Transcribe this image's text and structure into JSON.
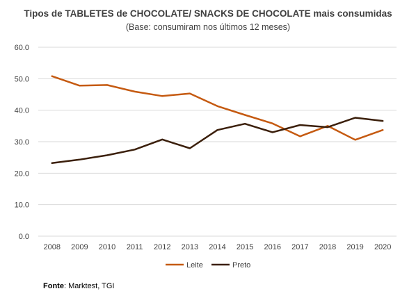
{
  "title": "Tipos de TABLETES de CHOCOLATE/ SNACKS DE CHOCOLATE mais consumidas",
  "subtitle": "(Base: consumiram nos últimos 12 meses)",
  "source_label": "Fonte",
  "source_text": ": Marktest, TGI",
  "chart_data": {
    "type": "line",
    "title": "Tipos de TABLETES de CHOCOLATE/ SNACKS DE CHOCOLATE mais consumidas",
    "subtitle": "(Base: consumiram nos últimos 12 meses)",
    "xlabel": "",
    "ylabel": "",
    "categories": [
      "2008",
      "2009",
      "2010",
      "2011",
      "2012",
      "2013",
      "2014",
      "2015",
      "2016",
      "2017",
      "2018",
      "2019",
      "2020"
    ],
    "ylim": [
      0,
      60
    ],
    "yticks": [
      "0.0",
      "10.0",
      "20.0",
      "30.0",
      "40.0",
      "50.0",
      "60.0"
    ],
    "grid": true,
    "legend_position": "bottom",
    "series": [
      {
        "name": "Leite",
        "color": "#c55a11",
        "values": [
          50.8,
          47.8,
          48.0,
          45.9,
          44.5,
          45.3,
          41.3,
          38.5,
          35.8,
          31.7,
          35.0,
          30.6,
          33.7
        ]
      },
      {
        "name": "Preto",
        "color": "#3b1f0b",
        "values": [
          23.2,
          24.3,
          25.7,
          27.5,
          30.7,
          27.9,
          33.7,
          35.7,
          33.0,
          35.3,
          34.6,
          37.6,
          36.6
        ]
      }
    ]
  }
}
